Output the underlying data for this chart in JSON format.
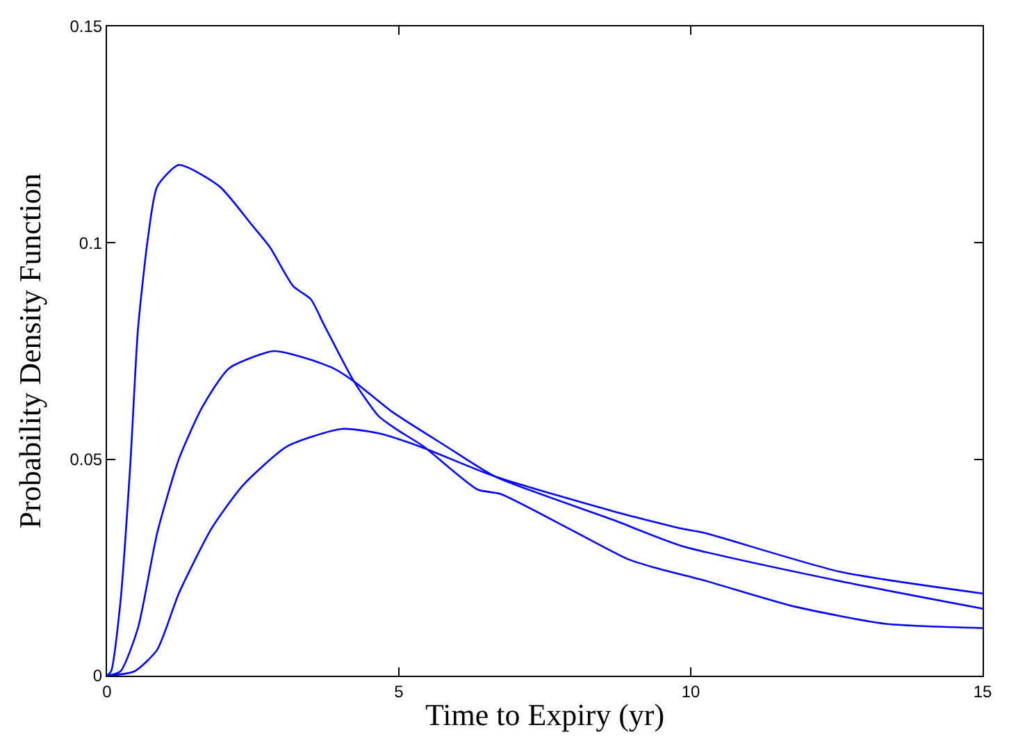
{
  "chart_data": {
    "type": "line",
    "xlabel": "Time to Expiry (yr)",
    "ylabel": "Probability Density Function",
    "xlim": [
      0,
      15
    ],
    "ylim": [
      0,
      0.15
    ],
    "xticks": [
      0,
      5,
      10,
      15
    ],
    "yticks": [
      0,
      0.05,
      0.1,
      0.15
    ],
    "marker": "none",
    "line_style": "solid",
    "series": [
      {
        "color": "#0000ff",
        "x": [
          0,
          0.07,
          0.23,
          0.4,
          0.53,
          0.7,
          0.86,
          1.23,
          1.93,
          2.49,
          2.79,
          3.19,
          3.49,
          3.72,
          4.23,
          4.65,
          4.95,
          5.42,
          6.35,
          6.74,
          7.91,
          8.91,
          9.37,
          10.23,
          11.77,
          13.33,
          15
        ],
        "values": [
          0,
          0.001,
          0.017,
          0.049,
          0.08,
          0.101,
          0.113,
          0.118,
          0.113,
          0.104,
          0.099,
          0.09,
          0.087,
          0.081,
          0.068,
          0.06,
          0.057,
          0.053,
          0.043,
          0.042,
          0.034,
          0.027,
          0.025,
          0.022,
          0.016,
          0.012,
          0.011
        ]
      },
      {
        "color": "#0000ff",
        "x": [
          0,
          0.23,
          0.53,
          0.86,
          1.23,
          1.63,
          2.09,
          2.86,
          3.49,
          3.88,
          4.23,
          4.88,
          5.81,
          6.65,
          8.67,
          9.84,
          12.5,
          15
        ],
        "values": [
          0,
          0.001,
          0.011,
          0.033,
          0.05,
          0.062,
          0.071,
          0.075,
          0.073,
          0.071,
          0.068,
          0.061,
          0.053,
          0.046,
          0.036,
          0.03,
          0.022,
          0.0155
        ]
      },
      {
        "color": "#0000ff",
        "x": [
          0,
          0.47,
          0.86,
          1.23,
          1.79,
          2.33,
          3.09,
          4.02,
          4.65,
          5.35,
          6.65,
          8.67,
          9.84,
          10.23,
          12.56,
          15
        ],
        "values": [
          0,
          0.001,
          0.006,
          0.019,
          0.034,
          0.044,
          0.053,
          0.057,
          0.056,
          0.053,
          0.046,
          0.038,
          0.034,
          0.033,
          0.024,
          0.019
        ]
      }
    ]
  }
}
